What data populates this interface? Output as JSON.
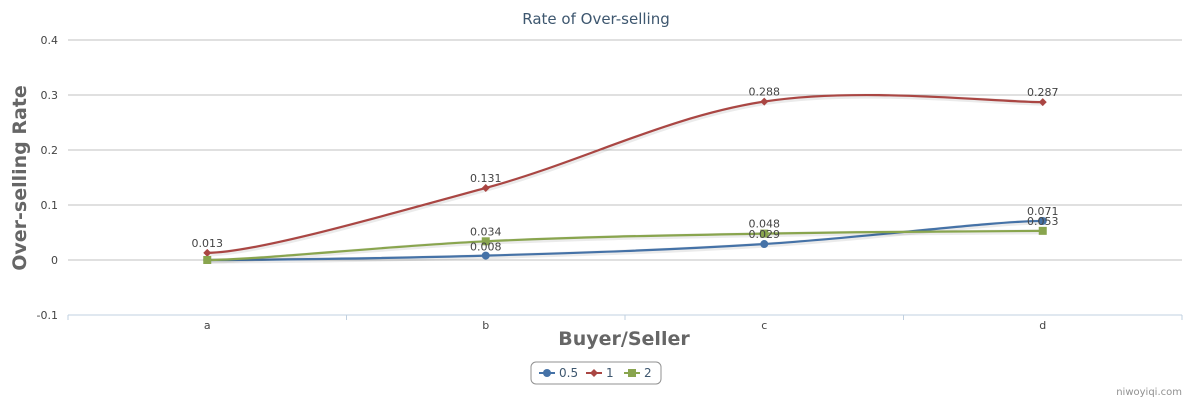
{
  "chart_data": {
    "type": "line",
    "title": "Rate of Over-selling",
    "xlabel": "Buyer/Seller",
    "ylabel": "Over-selling Rate",
    "categories": [
      "a",
      "b",
      "c",
      "d"
    ],
    "yticks": [
      "-0.1",
      "0",
      "0.1",
      "0.2",
      "0.3",
      "0.4"
    ],
    "ylim": [
      -0.1,
      0.4
    ],
    "grid": true,
    "legend_position": "bottom-center",
    "series": [
      {
        "name": "0.5",
        "values": [
          0.0,
          0.008,
          0.029,
          0.071
        ],
        "labels": [
          "",
          "0.008",
          "0.029",
          "0.071"
        ],
        "color": "#4572a7",
        "marker": "circle"
      },
      {
        "name": "1",
        "values": [
          0.013,
          0.131,
          0.288,
          0.287
        ],
        "labels": [
          "0.013",
          "0.131",
          "0.288",
          "0.287"
        ],
        "color": "#aa4643",
        "marker": "diamond"
      },
      {
        "name": "2",
        "values": [
          0.0,
          0.034,
          0.048,
          0.053
        ],
        "labels": [
          "",
          "0.034",
          "0.048",
          "0.053"
        ],
        "color": "#89a54e",
        "marker": "square"
      }
    ]
  },
  "credit": "niwoyiqi.com"
}
